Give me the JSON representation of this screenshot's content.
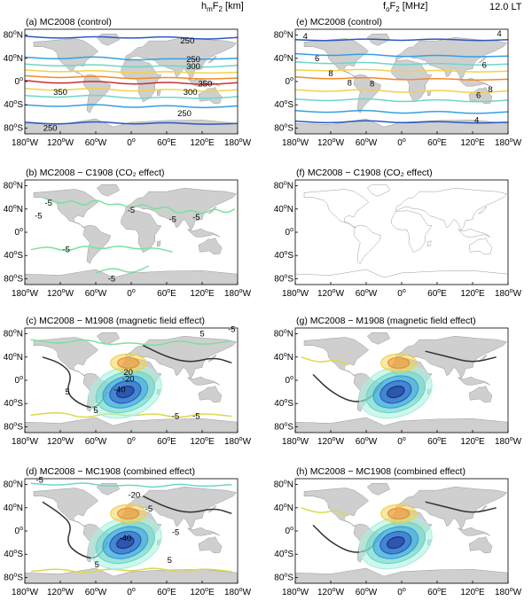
{
  "headers": {
    "left_title": "h",
    "left_sub": "m",
    "left_rest": "F",
    "left_sub2": "2",
    "left_unit": " [km]",
    "right_title": "f",
    "right_sub": "o",
    "right_rest": "F",
    "right_sub2": "2",
    "right_unit": " [MHz]",
    "local_time": "12.0 LT"
  },
  "chart_data": {
    "type": "contour_map",
    "x_ticks": [
      "180",
      "120",
      "60",
      "0",
      "60",
      "120",
      "180"
    ],
    "x_tick_suffix": [
      "W",
      "W",
      "W",
      "",
      "E",
      "E",
      "W"
    ],
    "y_ticks": [
      "80",
      "40",
      "0",
      "40",
      "80"
    ],
    "y_tick_suffix": [
      "N",
      "N",
      "",
      "S",
      "S"
    ],
    "xlim": [
      -180,
      180
    ],
    "ylim": [
      -90,
      90
    ],
    "panels": [
      {
        "id": "a",
        "title": "(a) MC2008 (control)",
        "quantity": "hmF2",
        "labels": [
          {
            "text": "250",
            "lon": 95,
            "lat": 70
          },
          {
            "text": "250",
            "lon": 105,
            "lat": 38
          },
          {
            "text": "300",
            "lon": 105,
            "lat": 26
          },
          {
            "text": "350",
            "lon": 125,
            "lat": -4
          },
          {
            "text": "300",
            "lon": 100,
            "lat": -18
          },
          {
            "text": "350",
            "lon": -120,
            "lat": -18
          },
          {
            "text": "250",
            "lon": 90,
            "lat": -55
          },
          {
            "text": "250",
            "lon": -137,
            "lat": -80
          }
        ]
      },
      {
        "id": "b",
        "title": "(b) MC2008 − C1908 (CO₂ effect)",
        "quantity": "hmF2",
        "labels": [
          {
            "text": "-5",
            "lon": -140,
            "lat": 50
          },
          {
            "text": "-5",
            "lon": -157,
            "lat": 28
          },
          {
            "text": "-5",
            "lon": 0,
            "lat": 38
          },
          {
            "text": "-5",
            "lon": 70,
            "lat": 22
          },
          {
            "text": "-5",
            "lon": 110,
            "lat": 26
          },
          {
            "text": "-5",
            "lon": -110,
            "lat": -30
          },
          {
            "text": "-5",
            "lon": -33,
            "lat": -80
          }
        ]
      },
      {
        "id": "c",
        "title": "(c) MC2008 − M1908 (magnetic field effect)",
        "quantity": "hmF2",
        "labels": [
          {
            "text": "5",
            "lon": 120,
            "lat": 80
          },
          {
            "text": "-5",
            "lon": 170,
            "lat": 88
          },
          {
            "text": "20",
            "lon": -5,
            "lat": 14
          },
          {
            "text": "-20",
            "lon": -5,
            "lat": 2
          },
          {
            "text": "-40",
            "lon": -20,
            "lat": -16
          },
          {
            "text": "5",
            "lon": -108,
            "lat": -20
          },
          {
            "text": "5",
            "lon": -60,
            "lat": -52
          },
          {
            "text": "-5",
            "lon": 75,
            "lat": -62
          },
          {
            "text": "-5",
            "lon": 110,
            "lat": -62
          }
        ]
      },
      {
        "id": "d",
        "title": "(d) MC2008 − MC1908 (combined effect)",
        "quantity": "hmF2",
        "labels": [
          {
            "text": "-5",
            "lon": -155,
            "lat": 88
          },
          {
            "text": "-20",
            "lon": 5,
            "lat": 62
          },
          {
            "text": "-5",
            "lon": 30,
            "lat": 38
          },
          {
            "text": "-40",
            "lon": -10,
            "lat": -12
          },
          {
            "text": "-5",
            "lon": 75,
            "lat": -2
          },
          {
            "text": "5",
            "lon": -58,
            "lat": -58
          },
          {
            "text": "5",
            "lon": 65,
            "lat": -50
          }
        ]
      },
      {
        "id": "e",
        "title": "(e) MC2008 (control)",
        "quantity": "foF2",
        "labels": [
          {
            "text": "4",
            "lon": -163,
            "lat": 78
          },
          {
            "text": "4",
            "lon": 165,
            "lat": 82
          },
          {
            "text": "6",
            "lon": -143,
            "lat": 40
          },
          {
            "text": "6",
            "lon": 140,
            "lat": 28
          },
          {
            "text": "8",
            "lon": -120,
            "lat": 14
          },
          {
            "text": "8",
            "lon": -88,
            "lat": -2
          },
          {
            "text": "8",
            "lon": -50,
            "lat": -4
          },
          {
            "text": "8",
            "lon": 150,
            "lat": -14
          },
          {
            "text": "6",
            "lon": 130,
            "lat": -24
          },
          {
            "text": "4",
            "lon": 127,
            "lat": -66
          }
        ]
      },
      {
        "id": "f",
        "title": "(f) MC2008 − C1908 (CO₂ effect)",
        "quantity": "foF2",
        "labels": []
      },
      {
        "id": "g",
        "title": "(g) MC2008 − M1908 (magnetic field effect)",
        "quantity": "foF2",
        "labels": []
      },
      {
        "id": "h",
        "title": "(h) MC2008 − MC1908 (combined effect)",
        "quantity": "foF2",
        "labels": []
      }
    ]
  }
}
